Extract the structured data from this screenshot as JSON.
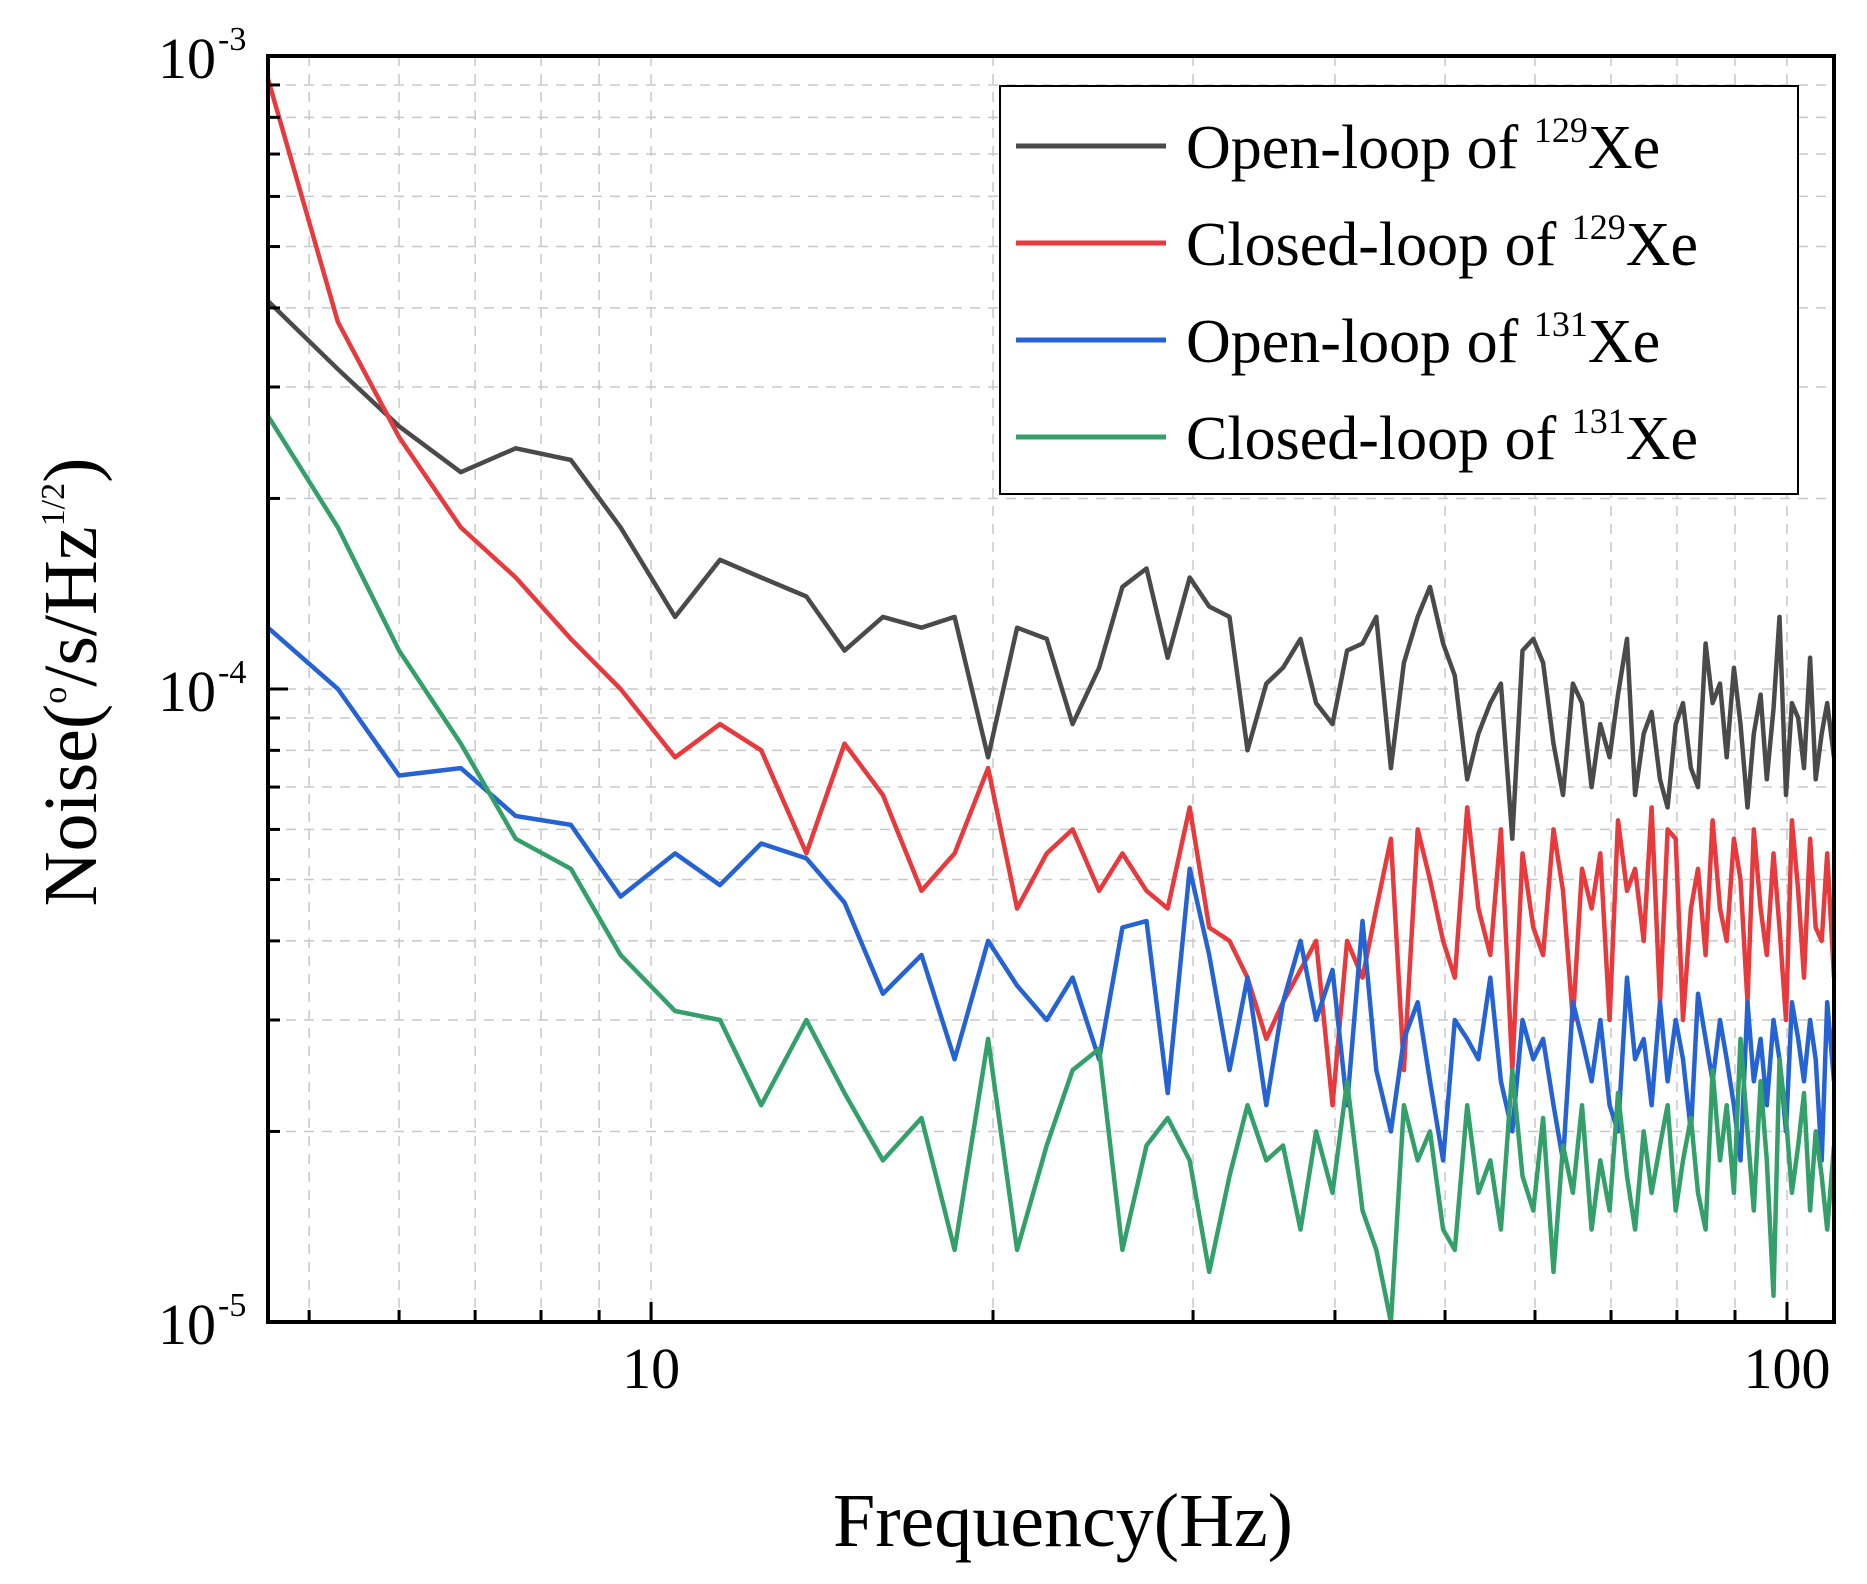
{
  "chart_data": {
    "type": "line",
    "x_scale": "log",
    "y_scale": "log",
    "xlabel": "Frequency(Hz)",
    "ylabel": {
      "prefix": "Noise(",
      "degree": "o",
      "middle": "/s/Hz",
      "power": "1/2",
      "suffix": ")"
    },
    "xlim": [
      4.6,
      110
    ],
    "ylim": [
      1e-05,
      0.001
    ],
    "x_ticks": [
      {
        "value": 10,
        "label": "10"
      },
      {
        "value": 100,
        "label": "100"
      }
    ],
    "y_ticks": [
      {
        "value": 1e-05,
        "base": "10",
        "exp": "-5"
      },
      {
        "value": 0.0001,
        "base": "10",
        "exp": "-4"
      },
      {
        "value": 0.001,
        "base": "10",
        "exp": "-3"
      }
    ],
    "grid": true,
    "legend_position": "top-right",
    "x": [
      4.6,
      5.3,
      6.0,
      6.8,
      7.6,
      8.5,
      9.4,
      10.5,
      11.5,
      12.5,
      13.7,
      14.8,
      16.0,
      17.3,
      18.5,
      19.8,
      21.0,
      22.3,
      23.5,
      24.8,
      26.0,
      27.3,
      28.5,
      29.8,
      31.0,
      32.3,
      33.5,
      34.8,
      36.0,
      37.3,
      38.5,
      39.8,
      41.0,
      42.3,
      43.5,
      44.8,
      46.0,
      47.3,
      48.5,
      49.8,
      51.0,
      52.3,
      53.5,
      54.8,
      56.0,
      57.3,
      58.5,
      59.8,
      61.0,
      62.3,
      63.5,
      64.8,
      66.0,
      67.3,
      68.5,
      69.8,
      71.0,
      72.3,
      73.5,
      74.8,
      76.0,
      77.3,
      78.5,
      79.8,
      81.0,
      82.3,
      83.5,
      84.8,
      86.0,
      87.3,
      88.5,
      89.8,
      91.0,
      92.3,
      93.5,
      94.8,
      96.0,
      97.3,
      98.5,
      99.8,
      101.0,
      102.3,
      103.5,
      104.8,
      106.0,
      107.3,
      108.5,
      110.0
    ],
    "series": [
      {
        "name": "Open-loop of 129Xe",
        "legend_main": "Open-loop of",
        "legend_sup": "129",
        "legend_tail": "Xe",
        "color": "#4a4a4a",
        "values": [
          0.00041,
          0.00032,
          0.00026,
          0.00022,
          0.00024,
          0.00023,
          0.00018,
          0.00013,
          0.00016,
          0.00015,
          0.00014,
          0.000115,
          0.00013,
          0.000125,
          0.00013,
          7.8e-05,
          0.000125,
          0.00012,
          8.8e-05,
          0.000108,
          0.000145,
          0.000155,
          0.000112,
          0.00015,
          0.000135,
          0.00013,
          8e-05,
          0.000102,
          0.000108,
          0.00012,
          9.5e-05,
          8.8e-05,
          0.000115,
          0.000118,
          0.00013,
          7.5e-05,
          0.00011,
          0.00013,
          0.000145,
          0.000118,
          0.000105,
          7.2e-05,
          8.5e-05,
          9.5e-05,
          0.000102,
          5.8e-05,
          0.000115,
          0.00012,
          0.00011,
          8.2e-05,
          6.8e-05,
          0.000102,
          9.5e-05,
          7e-05,
          8.8e-05,
          7.8e-05,
          9.8e-05,
          0.00012,
          6.8e-05,
          8.5e-05,
          9.2e-05,
          7.2e-05,
          6.5e-05,
          8.8e-05,
          9.5e-05,
          7.5e-05,
          7e-05,
          0.000118,
          9.5e-05,
          0.000102,
          7.8e-05,
          0.000108,
          8.8e-05,
          6.5e-05,
          8.5e-05,
          9.8e-05,
          7.2e-05,
          9.3e-05,
          0.00013,
          6.8e-05,
          9.5e-05,
          9e-05,
          7.5e-05,
          0.000112,
          7.2e-05,
          8.5e-05,
          9.5e-05,
          7.8e-05
        ]
      },
      {
        "name": "Closed-loop of 129Xe",
        "legend_main": "Closed-loop of",
        "legend_sup": "129",
        "legend_tail": "Xe",
        "color": "#e8393c",
        "values": [
          0.00092,
          0.00038,
          0.00025,
          0.00018,
          0.00015,
          0.00012,
          0.0001,
          7.8e-05,
          8.8e-05,
          8e-05,
          5.5e-05,
          8.2e-05,
          6.8e-05,
          4.8e-05,
          5.5e-05,
          7.5e-05,
          4.5e-05,
          5.5e-05,
          6e-05,
          4.8e-05,
          5.5e-05,
          4.8e-05,
          4.5e-05,
          6.5e-05,
          4.2e-05,
          4e-05,
          3.5e-05,
          2.8e-05,
          3.2e-05,
          3.6e-05,
          4e-05,
          2.2e-05,
          4e-05,
          3.5e-05,
          4.5e-05,
          5.8e-05,
          2.5e-05,
          6e-05,
          5e-05,
          4e-05,
          3.5e-05,
          6.5e-05,
          4.5e-05,
          3.8e-05,
          6e-05,
          2.5e-05,
          5.5e-05,
          4.2e-05,
          3.8e-05,
          6e-05,
          4.8e-05,
          3e-05,
          5.2e-05,
          4.5e-05,
          5.5e-05,
          3e-05,
          6.2e-05,
          4.8e-05,
          5.2e-05,
          4e-05,
          6.5e-05,
          3.2e-05,
          6e-05,
          5.8e-05,
          3e-05,
          4.5e-05,
          5.2e-05,
          3.8e-05,
          6.2e-05,
          4.5e-05,
          4e-05,
          5.8e-05,
          5e-05,
          3.2e-05,
          6e-05,
          4.5e-05,
          3.8e-05,
          5.5e-05,
          4.2e-05,
          3e-05,
          6.2e-05,
          4.8e-05,
          3.5e-05,
          5.8e-05,
          4.2e-05,
          4e-05,
          5.5e-05,
          3.5e-05
        ]
      },
      {
        "name": "Open-loop of 131Xe",
        "legend_main": "Open-loop of",
        "legend_sup": "131",
        "legend_tail": "Xe",
        "color": "#2563d4",
        "values": [
          0.000125,
          0.0001,
          7.3e-05,
          7.5e-05,
          6.3e-05,
          6.1e-05,
          4.7e-05,
          5.5e-05,
          4.9e-05,
          5.7e-05,
          5.4e-05,
          4.6e-05,
          3.3e-05,
          3.8e-05,
          2.6e-05,
          4e-05,
          3.4e-05,
          3e-05,
          3.5e-05,
          2.6e-05,
          4.2e-05,
          4.3e-05,
          2.3e-05,
          5.2e-05,
          3.8e-05,
          2.5e-05,
          3.5e-05,
          2.2e-05,
          3.2e-05,
          4e-05,
          3e-05,
          3.6e-05,
          2.2e-05,
          4.3e-05,
          2.5e-05,
          2e-05,
          2.8e-05,
          3.2e-05,
          2.4e-05,
          1.8e-05,
          3e-05,
          2.8e-05,
          2.6e-05,
          3.5e-05,
          2.4e-05,
          2e-05,
          3e-05,
          2.6e-05,
          2.8e-05,
          2.2e-05,
          1.8e-05,
          3.2e-05,
          2.8e-05,
          2.4e-05,
          3e-05,
          2.2e-05,
          2e-05,
          3.5e-05,
          2.6e-05,
          2.8e-05,
          2.2e-05,
          3.2e-05,
          2.4e-05,
          3e-05,
          2.6e-05,
          2e-05,
          3.3e-05,
          2.8e-05,
          2.4e-05,
          3e-05,
          2.6e-05,
          2.2e-05,
          1.8e-05,
          3.2e-05,
          2.4e-05,
          2.8e-05,
          2.2e-05,
          3e-05,
          2.6e-05,
          2e-05,
          3.2e-05,
          2.8e-05,
          2.4e-05,
          3e-05,
          2.6e-05,
          1.8e-05,
          3.2e-05,
          2.4e-05
        ]
      },
      {
        "name": "Closed-loop of 131Xe",
        "legend_main": "Closed-loop of",
        "legend_sup": "131",
        "legend_tail": "Xe",
        "color": "#33a06a",
        "values": [
          0.00027,
          0.00018,
          0.000115,
          8.2e-05,
          5.8e-05,
          5.2e-05,
          3.8e-05,
          3.1e-05,
          3e-05,
          2.2e-05,
          3e-05,
          2.3e-05,
          1.8e-05,
          2.1e-05,
          1.3e-05,
          2.8e-05,
          1.3e-05,
          1.9e-05,
          2.5e-05,
          2.7e-05,
          1.3e-05,
          1.9e-05,
          2.1e-05,
          1.8e-05,
          1.2e-05,
          1.7e-05,
          2.2e-05,
          1.8e-05,
          1.9e-05,
          1.4e-05,
          2e-05,
          1.6e-05,
          2.4e-05,
          1.5e-05,
          1.3e-05,
          1e-05,
          2.2e-05,
          1.8e-05,
          2e-05,
          1.4e-05,
          1.3e-05,
          2.2e-05,
          1.6e-05,
          1.8e-05,
          1.4e-05,
          2.5e-05,
          1.7e-05,
          1.5e-05,
          2.1e-05,
          1.2e-05,
          1.9e-05,
          1.6e-05,
          2.2e-05,
          1.4e-05,
          1.8e-05,
          1.5e-05,
          2.3e-05,
          1.7e-05,
          1.4e-05,
          2e-05,
          1.6e-05,
          1.9e-05,
          2.2e-05,
          1.5e-05,
          1.8e-05,
          2.1e-05,
          1.6e-05,
          1.4e-05,
          2.5e-05,
          1.8e-05,
          2.2e-05,
          1.6e-05,
          2.8e-05,
          2e-05,
          1.5e-05,
          2.4e-05,
          1.8e-05,
          1.1e-05,
          2.6e-05,
          2.1e-05,
          1.6e-05,
          1.9e-05,
          2.3e-05,
          1.5e-05,
          2e-05,
          1.7e-05,
          1.4e-05,
          1.9e-05
        ]
      }
    ]
  }
}
